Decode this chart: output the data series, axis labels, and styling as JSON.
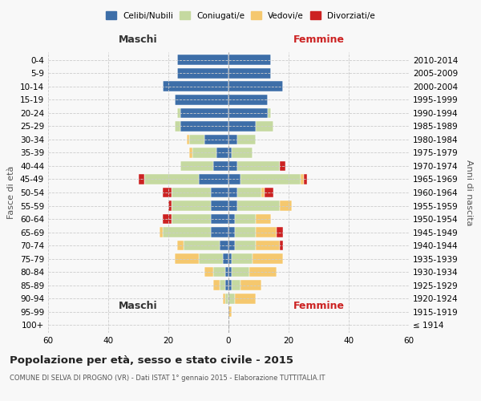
{
  "age_groups": [
    "100+",
    "95-99",
    "90-94",
    "85-89",
    "80-84",
    "75-79",
    "70-74",
    "65-69",
    "60-64",
    "55-59",
    "50-54",
    "45-49",
    "40-44",
    "35-39",
    "30-34",
    "25-29",
    "20-24",
    "15-19",
    "10-14",
    "5-9",
    "0-4"
  ],
  "birth_years": [
    "≤ 1914",
    "1915-1919",
    "1920-1924",
    "1925-1929",
    "1930-1934",
    "1935-1939",
    "1940-1944",
    "1945-1949",
    "1950-1954",
    "1955-1959",
    "1960-1964",
    "1965-1969",
    "1970-1974",
    "1975-1979",
    "1980-1984",
    "1985-1989",
    "1990-1994",
    "1995-1999",
    "2000-2004",
    "2005-2009",
    "2010-2014"
  ],
  "males": {
    "celibe": [
      0,
      0,
      0,
      1,
      1,
      2,
      3,
      6,
      6,
      6,
      6,
      10,
      5,
      4,
      8,
      16,
      16,
      18,
      22,
      17,
      17
    ],
    "coniugato": [
      0,
      0,
      1,
      2,
      4,
      8,
      12,
      16,
      13,
      13,
      13,
      18,
      11,
      8,
      5,
      2,
      1,
      0,
      0,
      0,
      0
    ],
    "vedovo": [
      0,
      0,
      1,
      2,
      3,
      8,
      2,
      1,
      0,
      0,
      0,
      0,
      0,
      1,
      1,
      0,
      0,
      0,
      0,
      0,
      0
    ],
    "divorziato": [
      0,
      0,
      0,
      0,
      0,
      0,
      0,
      0,
      3,
      1,
      3,
      2,
      0,
      0,
      0,
      0,
      0,
      0,
      0,
      0,
      0
    ]
  },
  "females": {
    "nubile": [
      0,
      0,
      0,
      1,
      1,
      1,
      2,
      2,
      2,
      3,
      3,
      4,
      3,
      1,
      3,
      9,
      13,
      13,
      18,
      14,
      14
    ],
    "coniugata": [
      0,
      0,
      2,
      3,
      6,
      7,
      7,
      7,
      7,
      14,
      8,
      20,
      14,
      7,
      6,
      6,
      1,
      0,
      0,
      0,
      0
    ],
    "vedova": [
      0,
      1,
      7,
      7,
      9,
      10,
      8,
      7,
      5,
      4,
      1,
      1,
      0,
      0,
      0,
      0,
      0,
      0,
      0,
      0,
      0
    ],
    "divorziata": [
      0,
      0,
      0,
      0,
      0,
      0,
      1,
      2,
      0,
      0,
      3,
      1,
      2,
      0,
      0,
      0,
      0,
      0,
      0,
      0,
      0
    ]
  },
  "colors": {
    "celibe": "#3d6ea8",
    "coniugato": "#c5d9a0",
    "vedovo": "#f5c86e",
    "divorziato": "#cc2222"
  },
  "xlim": 60,
  "title": "Popolazione per età, sesso e stato civile - 2015",
  "subtitle": "COMUNE DI SELVA DI PROGNO (VR) - Dati ISTAT 1° gennaio 2015 - Elaborazione TUTTITALIA.IT",
  "ylabel": "Fasce di età",
  "ylabel_right": "Anni di nascita",
  "legend_labels": [
    "Celibi/Nubili",
    "Coniugati/e",
    "Vedovi/e",
    "Divorziati/e"
  ],
  "maschi_label": "Maschi",
  "femmine_label": "Femmine",
  "bg_color": "#f8f8f8",
  "grid_color": "#cccccc"
}
